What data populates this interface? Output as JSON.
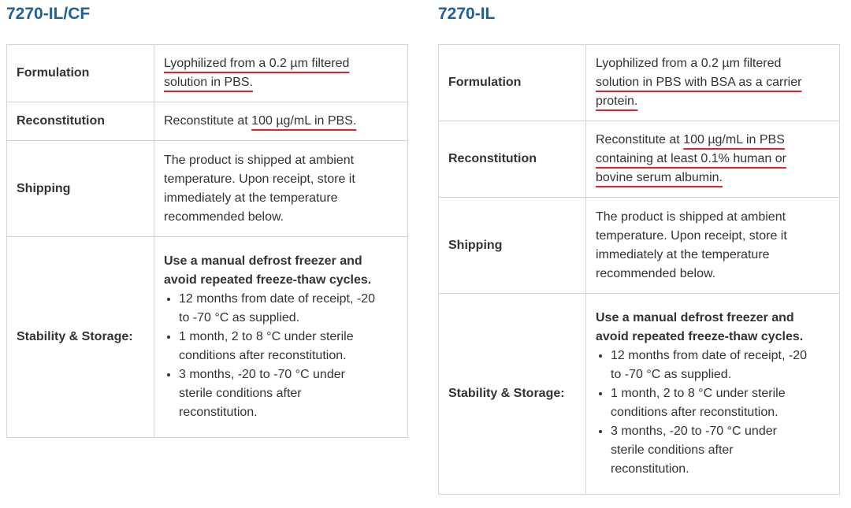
{
  "products": [
    {
      "title": "7270-IL/CF",
      "rows": [
        {
          "label": "Formulation",
          "lines": [
            [
              {
                "t": "Lyophilized from a 0.2 µm filtered",
                "u": true
              }
            ],
            [
              {
                "t": "solution in PBS.",
                "u": true
              }
            ]
          ]
        },
        {
          "label": "Reconstitution",
          "lines": [
            [
              {
                "t": "Reconstitute at "
              },
              {
                "t": "100 µg/mL in PBS.",
                "u": true
              }
            ]
          ]
        },
        {
          "label": "Shipping",
          "lines": [
            [
              {
                "t": "The product is shipped at ambient"
              }
            ],
            [
              {
                "t": "temperature. Upon receipt, store it"
              }
            ],
            [
              {
                "t": "immediately at the temperature"
              }
            ],
            [
              {
                "t": "recommended below."
              }
            ]
          ]
        },
        {
          "label": "Stability & Storage:",
          "bold_lines": [
            "Use a manual defrost freezer and",
            "avoid repeated freeze-thaw cycles."
          ],
          "bullets": [
            [
              "12 months from date of receipt, -20",
              "to -70 °C as supplied."
            ],
            [
              "1 month, 2 to 8 °C under sterile",
              "conditions after reconstitution."
            ],
            [
              "3 months, -20 to -70 °C under",
              "sterile conditions after",
              "reconstitution."
            ]
          ]
        }
      ]
    },
    {
      "title": "7270-IL",
      "rows": [
        {
          "label": "Formulation",
          "lines": [
            [
              {
                "t": "Lyophilized from a 0.2 µm filtered"
              }
            ],
            [
              {
                "t": "solution in PBS with BSA as a carrier",
                "u": true
              }
            ],
            [
              {
                "t": "protein.",
                "u": true
              }
            ]
          ]
        },
        {
          "label": "Reconstitution",
          "lines": [
            [
              {
                "t": "Reconstitute at "
              },
              {
                "t": "100 µg/mL in PBS",
                "u": true
              }
            ],
            [
              {
                "t": "containing at least 0.1% human or",
                "u": true
              }
            ],
            [
              {
                "t": "bovine serum albumin.",
                "u": true
              }
            ]
          ]
        },
        {
          "label": "Shipping",
          "lines": [
            [
              {
                "t": "The product is shipped at ambient"
              }
            ],
            [
              {
                "t": "temperature. Upon receipt, store it"
              }
            ],
            [
              {
                "t": "immediately at the temperature"
              }
            ],
            [
              {
                "t": "recommended below."
              }
            ]
          ]
        },
        {
          "label": "Stability & Storage:",
          "bold_lines": [
            "Use a manual defrost freezer and",
            "avoid repeated freeze-thaw cycles."
          ],
          "bullets": [
            [
              "12 months from date of receipt, -20",
              "to -70 °C as supplied."
            ],
            [
              "1 month, 2 to 8 °C under sterile",
              "conditions after reconstitution."
            ],
            [
              "3 months, -20 to -70 °C under",
              "sterile conditions after",
              "reconstitution."
            ]
          ]
        }
      ]
    }
  ],
  "colors": {
    "title": "#1d5fa0",
    "underline": "#e8202a",
    "text": "#333333",
    "border": "#d4d4d4"
  }
}
